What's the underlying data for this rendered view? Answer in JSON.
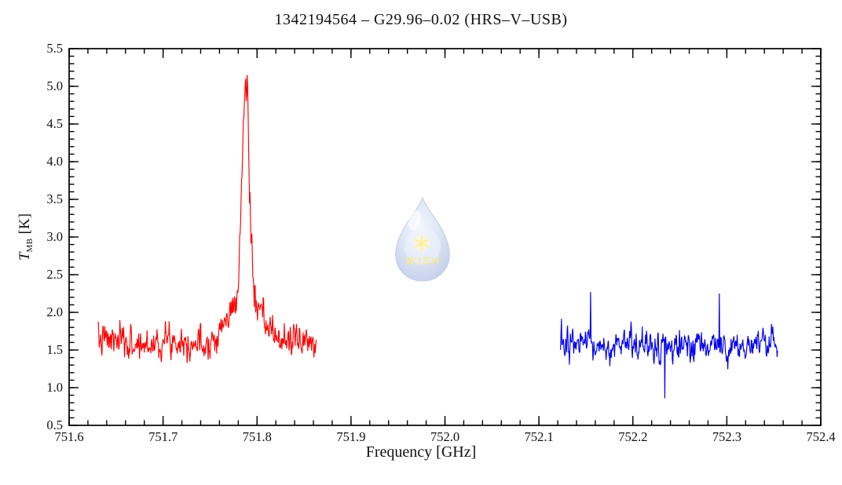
{
  "watermark": {
    "text": "WISH",
    "drop_fill_inner": "#e9effb",
    "drop_fill_mid": "#c2d0ee",
    "drop_fill_edge": "#97abd9",
    "star_color": "#ffe83d",
    "text_color": "#f2dd3a",
    "opacity": 0.55
  },
  "chart_data": {
    "type": "line",
    "title": "1342194564 – G29.96–0.02 (HRS–V–USB)",
    "xlabel": "Frequency [GHz]",
    "ylabel_parts": {
      "symbol": "T",
      "subscript": "MB",
      "unit": "[K]"
    },
    "xlim": [
      751.6,
      752.4
    ],
    "ylim": [
      0.5,
      5.5
    ],
    "grid": false,
    "legend": "none",
    "frame": "box-with-inward-ticks",
    "x_ticks": [
      {
        "v": 751.6,
        "label": "751.6"
      },
      {
        "v": 751.7,
        "label": "751.7"
      },
      {
        "v": 751.8,
        "label": "751.8"
      },
      {
        "v": 751.9,
        "label": "751.9"
      },
      {
        "v": 752.0,
        "label": "752.0"
      },
      {
        "v": 752.1,
        "label": "752.1"
      },
      {
        "v": 752.2,
        "label": "752.2"
      },
      {
        "v": 752.3,
        "label": "752.3"
      },
      {
        "v": 752.4,
        "label": "752.4"
      }
    ],
    "y_ticks": [
      {
        "v": 0.5,
        "label": "0.5"
      },
      {
        "v": 1.0,
        "label": "1.0"
      },
      {
        "v": 1.5,
        "label": "1.5"
      },
      {
        "v": 2.0,
        "label": "2.0"
      },
      {
        "v": 2.5,
        "label": "2.5"
      },
      {
        "v": 3.0,
        "label": "3.0"
      },
      {
        "v": 3.5,
        "label": "3.5"
      },
      {
        "v": 4.0,
        "label": "4.0"
      },
      {
        "v": 4.5,
        "label": "4.5"
      },
      {
        "v": 5.0,
        "label": "5.0"
      },
      {
        "v": 5.5,
        "label": "5.5"
      }
    ],
    "x_minor_step": 0.02,
    "y_minor_step": 0.1,
    "series": [
      {
        "name": "lower-sideband-segment-red",
        "color": "#ff0000",
        "x_start": 751.631,
        "x_end": 751.863,
        "channel_width_ghz": 0.0005,
        "baseline_K": 1.6,
        "noise_sigma_K": 0.105,
        "seed": 7,
        "peak": {
          "center_ghz": 751.788,
          "peak_K": 5.0,
          "fwhm_ghz": 0.009,
          "wing_fwhm_ghz": 0.042,
          "wing_amp_K": 0.55
        },
        "spikes": []
      },
      {
        "name": "upper-sideband-segment-blue",
        "color": "#0000ee",
        "x_start": 752.123,
        "x_end": 752.354,
        "channel_width_ghz": 0.0005,
        "baseline_K": 1.55,
        "noise_sigma_K": 0.105,
        "seed": 13,
        "peak": null,
        "spikes": [
          {
            "x": 752.155,
            "y": 2.27
          },
          {
            "x": 752.234,
            "y": 0.86
          },
          {
            "x": 752.292,
            "y": 2.25
          }
        ]
      }
    ]
  }
}
